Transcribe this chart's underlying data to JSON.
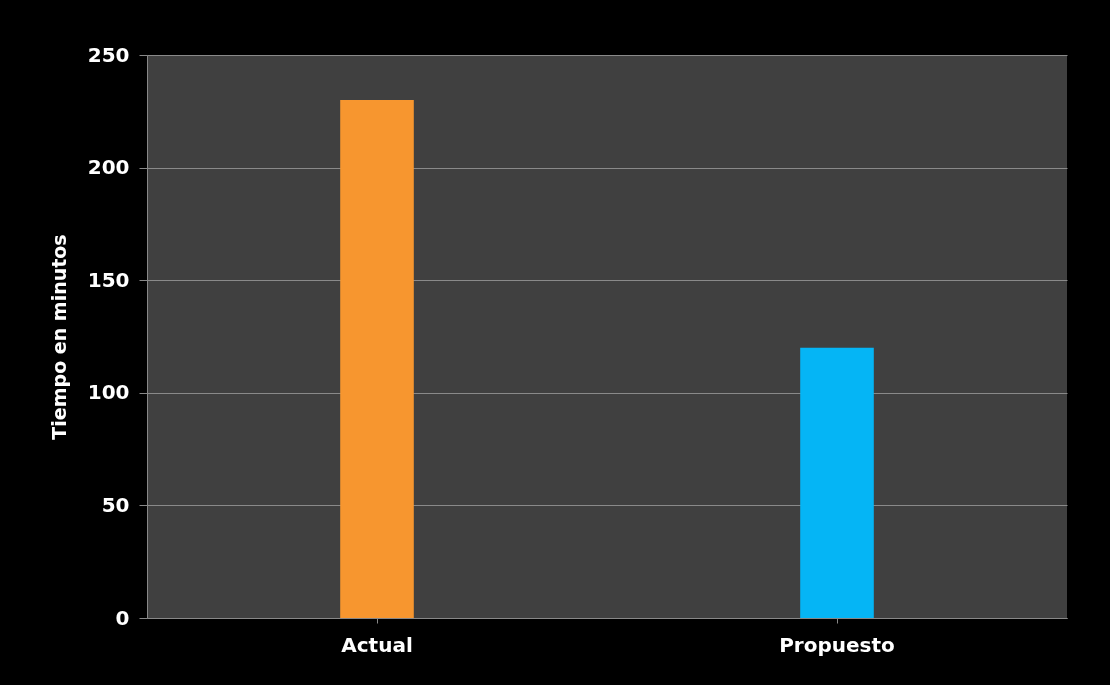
{
  "chart_data": {
    "type": "bar",
    "ylabel": "Tiempo en minutos",
    "categories": [
      "Actual",
      "Propuesto"
    ],
    "values": [
      230,
      120
    ],
    "colors": [
      "#f7962f",
      "#05b5f5"
    ],
    "ylim": [
      0,
      250
    ],
    "yticks": [
      0,
      50,
      100,
      150,
      200,
      250
    ],
    "grid": "y"
  }
}
